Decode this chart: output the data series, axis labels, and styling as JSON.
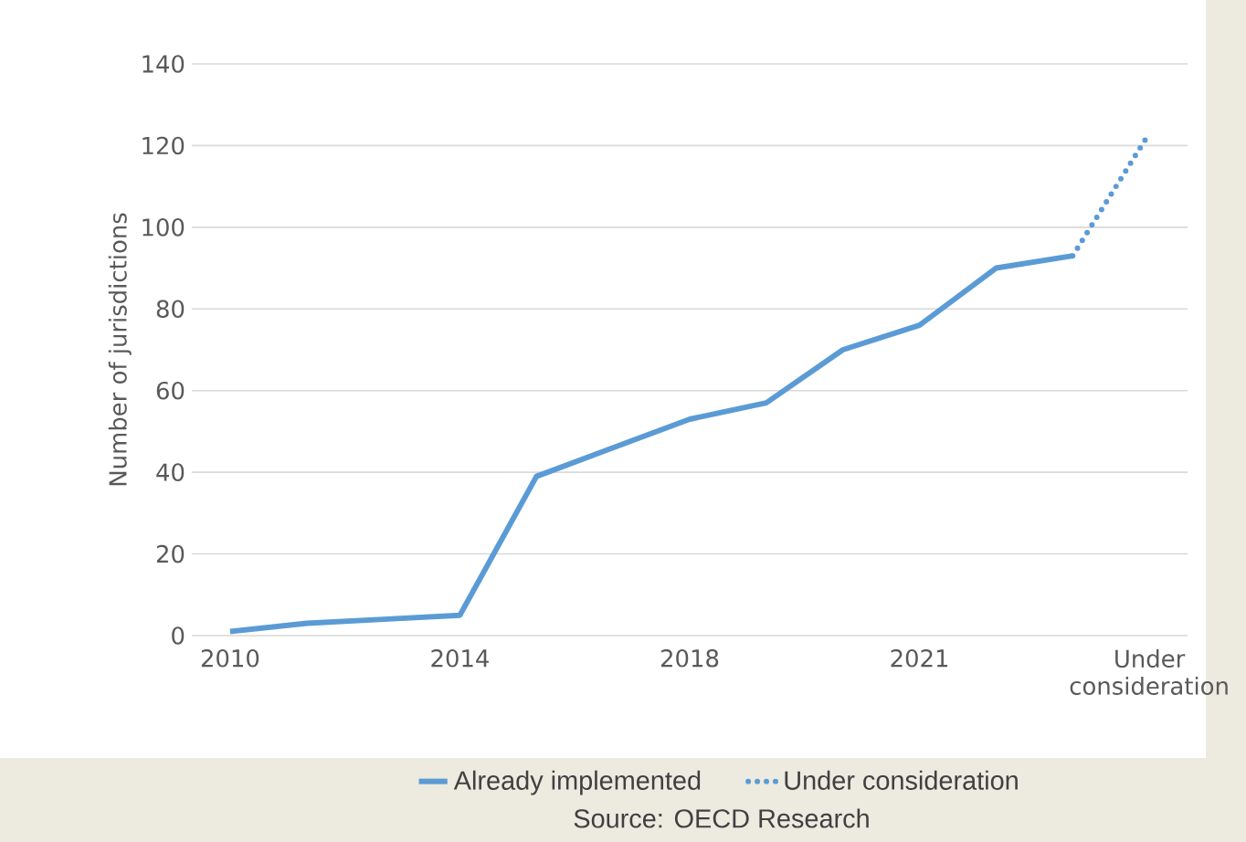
{
  "chart_data": {
    "type": "line",
    "ylabel": "Number of jurisdictions",
    "categories": [
      "2010",
      null,
      null,
      "2014",
      null,
      null,
      "2018",
      null,
      null,
      "2021",
      null,
      null,
      "Under consideration"
    ],
    "series": [
      {
        "name": "Already implemented",
        "color": "#5b9bd5",
        "line_style": "solid",
        "values": [
          1,
          3,
          4,
          5,
          39,
          46,
          53,
          57,
          70,
          76,
          90,
          93,
          null
        ]
      },
      {
        "name": "Under consideration",
        "color": "#5b9bd5",
        "line_style": "dotted",
        "values": [
          null,
          null,
          null,
          null,
          null,
          null,
          null,
          null,
          null,
          null,
          null,
          93,
          123
        ]
      }
    ],
    "ylim": [
      0,
      140
    ],
    "yticks": [
      0,
      20,
      40,
      60,
      80,
      100,
      120,
      140
    ],
    "grid": "y",
    "legend": "bottom",
    "marker": "none",
    "annotations": [
      "Source: OECD Research"
    ]
  }
}
